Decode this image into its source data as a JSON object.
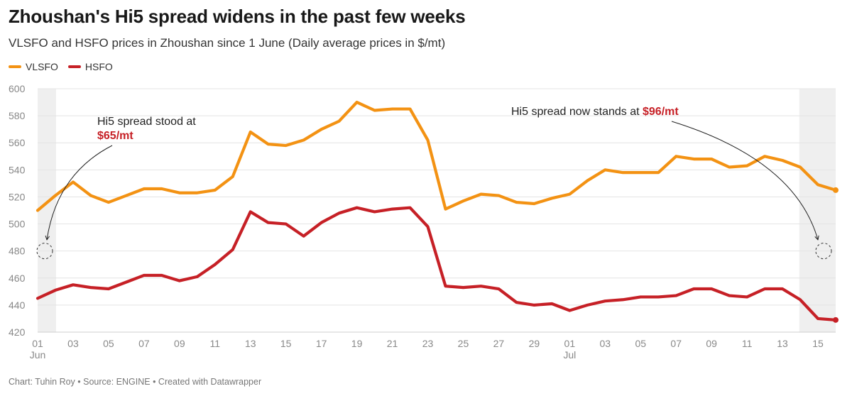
{
  "title": "Zhoushan's Hi5 spread widens in the past few weeks",
  "subtitle": "VLSFO and HSFO prices in Zhoushan since 1 June (Daily average prices in $/mt)",
  "footer": "Chart: Tuhin Roy • Source: ENGINE • Created with Datawrapper",
  "colors": {
    "vlsfo": "#f39213",
    "hsfo": "#c62026",
    "grid": "#e4e4e4",
    "shade": "#efefef",
    "highlight": "#c62026"
  },
  "chart_data": {
    "type": "line",
    "title": "Zhoushan's Hi5 spread widens in the past few weeks",
    "ylim": [
      420,
      600
    ],
    "yticks": [
      420,
      440,
      460,
      480,
      500,
      520,
      540,
      560,
      580,
      600
    ],
    "grid": true,
    "legend_position": "top-left",
    "xlim": [
      "2024-06-01",
      "2024-07-16"
    ],
    "x": [
      "2024-06-01",
      "2024-06-02",
      "2024-06-03",
      "2024-06-04",
      "2024-06-05",
      "2024-06-06",
      "2024-06-07",
      "2024-06-08",
      "2024-06-09",
      "2024-06-10",
      "2024-06-11",
      "2024-06-12",
      "2024-06-13",
      "2024-06-14",
      "2024-06-15",
      "2024-06-16",
      "2024-06-17",
      "2024-06-18",
      "2024-06-19",
      "2024-06-20",
      "2024-06-21",
      "2024-06-22",
      "2024-06-23",
      "2024-06-24",
      "2024-06-25",
      "2024-06-26",
      "2024-06-27",
      "2024-06-28",
      "2024-06-29",
      "2024-06-30",
      "2024-07-01",
      "2024-07-02",
      "2024-07-03",
      "2024-07-04",
      "2024-07-05",
      "2024-07-06",
      "2024-07-07",
      "2024-07-08",
      "2024-07-09",
      "2024-07-10",
      "2024-07-11",
      "2024-07-12",
      "2024-07-13",
      "2024-07-14",
      "2024-07-15",
      "2024-07-16"
    ],
    "x_ticks": [
      {
        "date": "2024-06-01",
        "label": "01",
        "sublabel": "Jun"
      },
      {
        "date": "2024-06-03",
        "label": "03"
      },
      {
        "date": "2024-06-05",
        "label": "05"
      },
      {
        "date": "2024-06-07",
        "label": "07"
      },
      {
        "date": "2024-06-09",
        "label": "09"
      },
      {
        "date": "2024-06-11",
        "label": "11"
      },
      {
        "date": "2024-06-13",
        "label": "13"
      },
      {
        "date": "2024-06-15",
        "label": "15"
      },
      {
        "date": "2024-06-17",
        "label": "17"
      },
      {
        "date": "2024-06-19",
        "label": "19"
      },
      {
        "date": "2024-06-21",
        "label": "21"
      },
      {
        "date": "2024-06-23",
        "label": "23"
      },
      {
        "date": "2024-06-25",
        "label": "25"
      },
      {
        "date": "2024-06-27",
        "label": "27"
      },
      {
        "date": "2024-06-29",
        "label": "29"
      },
      {
        "date": "2024-07-01",
        "label": "01",
        "sublabel": "Jul"
      },
      {
        "date": "2024-07-03",
        "label": "03"
      },
      {
        "date": "2024-07-05",
        "label": "05"
      },
      {
        "date": "2024-07-07",
        "label": "07"
      },
      {
        "date": "2024-07-09",
        "label": "09"
      },
      {
        "date": "2024-07-11",
        "label": "11"
      },
      {
        "date": "2024-07-13",
        "label": "13"
      },
      {
        "date": "2024-07-15",
        "label": "15"
      }
    ],
    "series": [
      {
        "name": "VLSFO",
        "color": "#f39213",
        "values": [
          510,
          521,
          531,
          521,
          516,
          521,
          526,
          526,
          523,
          523,
          525,
          535,
          568,
          559,
          558,
          562,
          570,
          576,
          590,
          584,
          585,
          585,
          562,
          511,
          517,
          522,
          521,
          516,
          515,
          519,
          522,
          532,
          540,
          538,
          538,
          538,
          550,
          548,
          548,
          542,
          543,
          550,
          547,
          542,
          529,
          525
        ]
      },
      {
        "name": "HSFO",
        "color": "#c62026",
        "values": [
          445,
          451,
          455,
          453,
          452,
          457,
          462,
          462,
          458,
          461,
          470,
          481,
          509,
          501,
          500,
          491,
          501,
          508,
          512,
          509,
          511,
          512,
          498,
          454,
          453,
          454,
          452,
          442,
          440,
          441,
          436,
          440,
          443,
          444,
          446,
          446,
          447,
          452,
          452,
          447,
          446,
          452,
          452,
          444,
          430,
          429
        ]
      }
    ],
    "highlight_ranges": [
      {
        "from": "2024-06-01",
        "to": "2024-06-02"
      },
      {
        "from": "2024-07-14",
        "to": "2024-07-16"
      }
    ],
    "annotations": [
      {
        "line1": "Hi5 spread stood at",
        "highlight": "$65/mt",
        "target_x": "2024-06-01",
        "target_y": 480
      },
      {
        "line1": "Hi5 spread now stands at",
        "highlight": "$96/mt",
        "target_x": "2024-07-16",
        "target_y": 480
      }
    ]
  }
}
